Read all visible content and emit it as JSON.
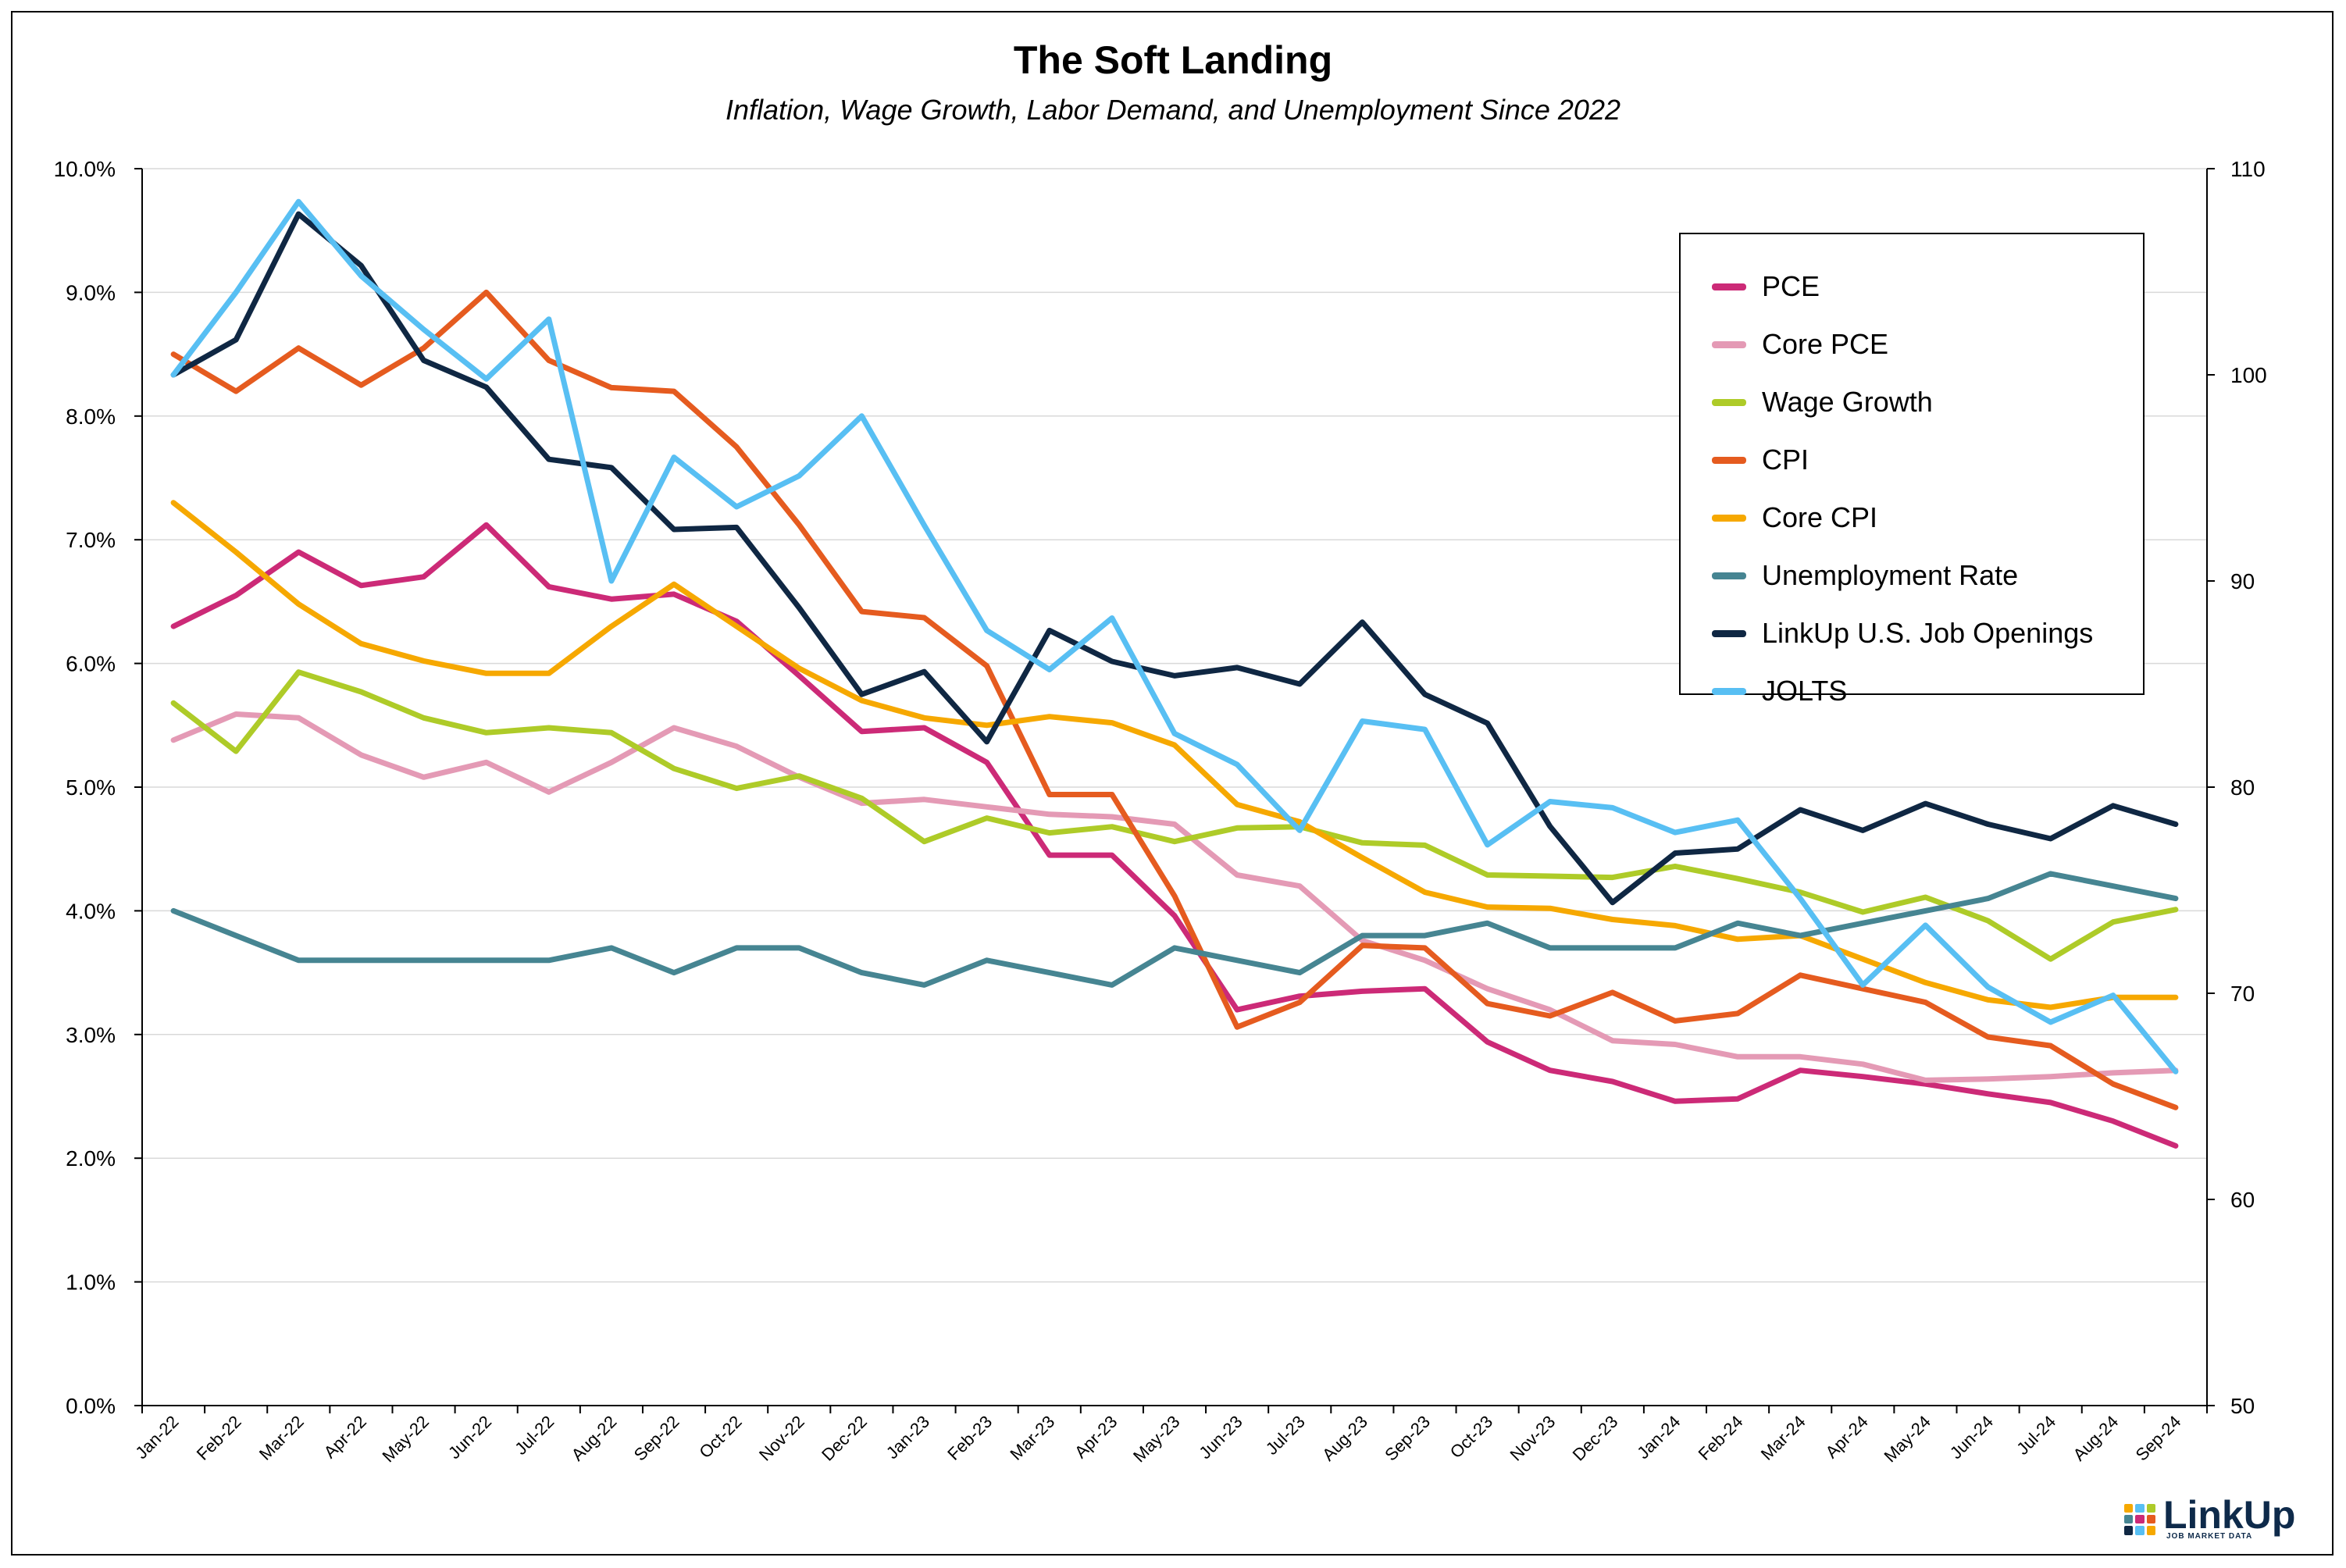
{
  "chart_data": {
    "type": "line",
    "title": "The Soft Landing",
    "subtitle": "Inflation, Wage Growth, Labor Demand, and Unemployment Since 2022",
    "categories": [
      "Jan-22",
      "Feb-22",
      "Mar-22",
      "Apr-22",
      "May-22",
      "Jun-22",
      "Jul-22",
      "Aug-22",
      "Sep-22",
      "Oct-22",
      "Nov-22",
      "Dec-22",
      "Jan-23",
      "Feb-23",
      "Mar-23",
      "Apr-23",
      "May-23",
      "Jun-23",
      "Jul-23",
      "Aug-23",
      "Sep-23",
      "Oct-23",
      "Nov-23",
      "Dec-23",
      "Jan-24",
      "Feb-24",
      "Mar-24",
      "Apr-24",
      "May-24",
      "Jun-24",
      "Jul-24",
      "Aug-24",
      "Sep-24"
    ],
    "y_left": {
      "ylim": [
        0,
        10
      ],
      "ticks": [
        0,
        1,
        2,
        3,
        4,
        5,
        6,
        7,
        8,
        9,
        10
      ],
      "tick_labels": [
        "0.0%",
        "1.0%",
        "2.0%",
        "3.0%",
        "4.0%",
        "5.0%",
        "6.0%",
        "7.0%",
        "8.0%",
        "9.0%",
        "10.0%"
      ]
    },
    "y_right": {
      "ylim": [
        50,
        110
      ],
      "ticks": [
        50,
        60,
        70,
        80,
        90,
        100,
        110
      ],
      "tick_labels": [
        "50",
        "60",
        "70",
        "80",
        "90",
        "100",
        "110"
      ]
    },
    "grid": true,
    "legend_position": "top-right",
    "series": [
      {
        "name": "PCE",
        "color": "#cc2a77",
        "axis": "left",
        "values": [
          6.3,
          6.55,
          6.9,
          6.63,
          6.7,
          7.12,
          6.62,
          6.52,
          6.56,
          6.34,
          5.9,
          5.45,
          5.48,
          5.2,
          4.45,
          4.45,
          3.96,
          3.2,
          3.31,
          3.35,
          3.37,
          2.94,
          2.71,
          2.62,
          2.46,
          2.48,
          2.71,
          2.66,
          2.6,
          2.52,
          2.45,
          2.3,
          2.1
        ]
      },
      {
        "name": "Core PCE",
        "color": "#e49ab5",
        "axis": "left",
        "values": [
          5.38,
          5.59,
          5.56,
          5.26,
          5.08,
          5.2,
          4.96,
          5.2,
          5.48,
          5.33,
          5.08,
          4.87,
          4.9,
          4.84,
          4.78,
          4.76,
          4.7,
          4.29,
          4.2,
          3.76,
          3.6,
          3.37,
          3.2,
          2.95,
          2.92,
          2.82,
          2.82,
          2.76,
          2.63,
          2.64,
          2.66,
          2.69,
          2.71
        ]
      },
      {
        "name": "Wage Growth",
        "color": "#aecb28",
        "axis": "left",
        "values": [
          5.68,
          5.29,
          5.93,
          5.77,
          5.56,
          5.44,
          5.48,
          5.44,
          5.15,
          4.99,
          5.09,
          4.91,
          4.56,
          4.75,
          4.63,
          4.68,
          4.56,
          4.67,
          4.68,
          4.55,
          4.53,
          4.29,
          4.28,
          4.27,
          4.36,
          4.26,
          4.15,
          3.99,
          4.11,
          3.92,
          3.61,
          3.91,
          4.01
        ]
      },
      {
        "name": "CPI",
        "color": "#e55b1f",
        "axis": "left",
        "values": [
          8.5,
          8.2,
          8.55,
          8.25,
          8.55,
          9.0,
          8.45,
          8.23,
          8.2,
          7.75,
          7.12,
          6.42,
          6.37,
          5.98,
          4.94,
          4.94,
          4.12,
          3.06,
          3.26,
          3.72,
          3.7,
          3.25,
          3.15,
          3.34,
          3.11,
          3.17,
          3.48,
          3.37,
          3.26,
          2.98,
          2.91,
          2.6,
          2.41
        ]
      },
      {
        "name": "Core CPI",
        "color": "#f6a800",
        "axis": "left",
        "values": [
          7.3,
          6.9,
          6.48,
          6.16,
          6.02,
          5.92,
          5.92,
          6.3,
          6.64,
          6.3,
          5.96,
          5.7,
          5.56,
          5.5,
          5.57,
          5.52,
          5.34,
          4.86,
          4.72,
          4.43,
          4.15,
          4.03,
          4.02,
          3.93,
          3.88,
          3.77,
          3.8,
          3.61,
          3.42,
          3.28,
          3.22,
          3.3,
          3.3
        ]
      },
      {
        "name": "Unemployment Rate",
        "color": "#468592",
        "axis": "left",
        "values": [
          4.0,
          3.8,
          3.6,
          3.6,
          3.6,
          3.6,
          3.6,
          3.7,
          3.5,
          3.7,
          3.7,
          3.5,
          3.4,
          3.6,
          3.5,
          3.4,
          3.7,
          3.6,
          3.5,
          3.8,
          3.8,
          3.9,
          3.7,
          3.7,
          3.7,
          3.9,
          3.8,
          3.9,
          4.0,
          4.1,
          4.3,
          4.2,
          4.1
        ]
      },
      {
        "name": "LinkUp U.S. Job Openings",
        "color": "#0f2743",
        "axis": "right",
        "values": [
          100.0,
          101.7,
          107.8,
          105.3,
          100.7,
          99.4,
          95.9,
          95.5,
          92.5,
          92.6,
          88.7,
          84.5,
          85.6,
          82.2,
          87.6,
          86.1,
          85.4,
          85.8,
          85.0,
          88.0,
          84.5,
          83.1,
          78.1,
          74.4,
          76.8,
          77.0,
          78.9,
          77.9,
          79.2,
          78.2,
          77.5,
          79.1,
          78.2
        ]
      },
      {
        "name": "JOLTS",
        "color": "#58bff3",
        "axis": "right",
        "values": [
          100.0,
          104.0,
          108.4,
          104.8,
          102.2,
          99.8,
          102.7,
          90.0,
          96.0,
          93.6,
          95.1,
          98.0,
          92.7,
          87.6,
          85.7,
          88.2,
          82.6,
          81.1,
          77.9,
          83.2,
          82.8,
          77.2,
          79.3,
          79.0,
          77.8,
          78.4,
          74.6,
          70.4,
          73.3,
          70.3,
          68.6,
          69.9,
          66.2
        ]
      }
    ]
  },
  "logo": {
    "name": "LinkUp",
    "tagline": "JOB MARKET DATA"
  }
}
